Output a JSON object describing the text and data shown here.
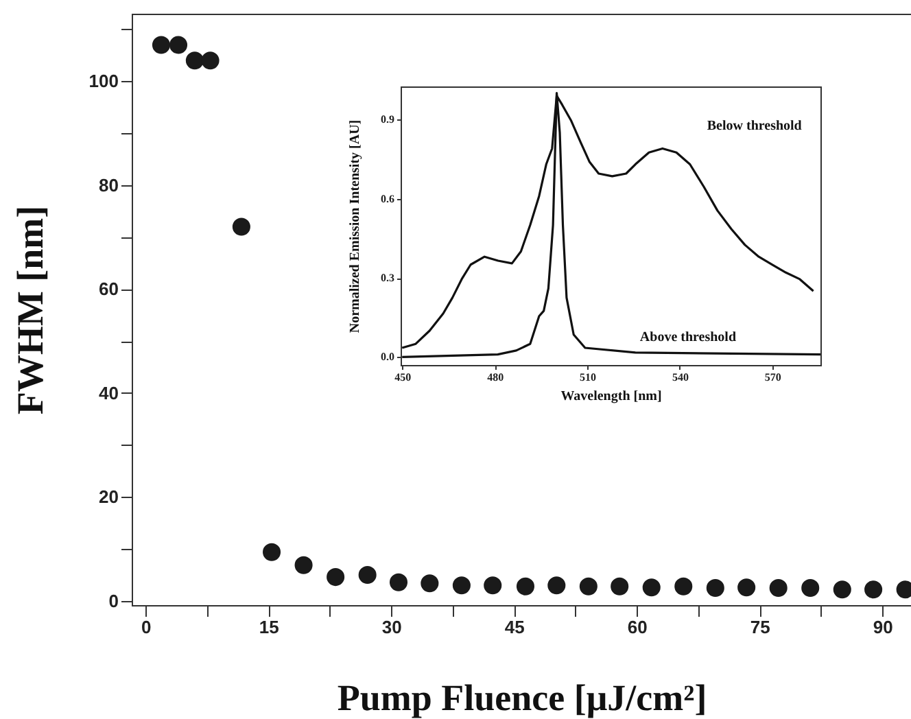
{
  "chart_data": [
    {
      "type": "scatter",
      "xlabel": "Pump Fluence [μJ/cm²]",
      "ylabel": "FWHM [nm]",
      "x": [
        1.9,
        4.0,
        6.0,
        7.9,
        11.7,
        15.4,
        19.3,
        23.2,
        27.1,
        30.9,
        34.7,
        38.6,
        42.4,
        46.4,
        50.2,
        54.1,
        57.9,
        61.8,
        65.7,
        69.6,
        73.4,
        77.3,
        81.2,
        85.1,
        88.9,
        92.8
      ],
      "series": [
        {
          "color": "#1a1a1a",
          "values": [
            107,
            107,
            104,
            104,
            72,
            9.4,
            6.9,
            4.6,
            5.0,
            3.6,
            3.4,
            3.0,
            3.0,
            2.8,
            3.0,
            2.8,
            2.8,
            2.6,
            2.8,
            2.5,
            2.6,
            2.5,
            2.5,
            2.2,
            2.2,
            2.2
          ]
        }
      ],
      "xlim": [
        -1.7,
        93.5
      ],
      "ylim": [
        -0.8,
        113
      ],
      "xticks": [
        0,
        {
          "value": 7.5,
          "label": null
        },
        15,
        {
          "value": 22.5,
          "label": null
        },
        30,
        {
          "value": 37.5,
          "label": null
        },
        45,
        {
          "value": 52.5,
          "label": null
        },
        60,
        {
          "value": 67.5,
          "label": null
        },
        75,
        {
          "value": 82.5,
          "label": null
        },
        90
      ],
      "yticks": [
        0,
        {
          "value": 10,
          "label": null
        },
        20,
        {
          "value": 30,
          "label": null
        },
        40,
        {
          "value": 50,
          "label": null
        },
        60,
        {
          "value": 70,
          "label": null
        },
        80,
        {
          "value": 90,
          "label": null
        },
        100,
        {
          "value": 110,
          "label": null
        }
      ],
      "marker": "circle",
      "grid": false
    },
    {
      "type": "line",
      "xlabel": "Wavelength [nm]",
      "ylabel": "Normalized Emission Intensity [AU]",
      "series": [
        {
          "name": "Below threshold",
          "color": "#111111",
          "x": [
            450,
            454.4,
            458.9,
            463.3,
            466.3,
            469.3,
            472.2,
            476.7,
            481.1,
            485.6,
            488.5,
            491.5,
            494.4,
            496.7,
            498.6,
            500.1,
            501.9,
            504.8,
            507.8,
            510.7,
            513.7,
            518.1,
            522.6,
            525.6,
            530,
            534.4,
            538.9,
            543.3,
            547.8,
            552.2,
            556.7,
            561.1,
            565.6,
            570,
            574.4,
            578.9,
            583.3
          ],
          "values": [
            0.035,
            0.05,
            0.1,
            0.165,
            0.225,
            0.295,
            0.35,
            0.38,
            0.365,
            0.355,
            0.4,
            0.5,
            0.61,
            0.73,
            0.79,
            0.99,
            0.955,
            0.895,
            0.815,
            0.74,
            0.695,
            0.685,
            0.695,
            0.73,
            0.775,
            0.79,
            0.775,
            0.73,
            0.645,
            0.555,
            0.485,
            0.425,
            0.38,
            0.35,
            0.32,
            0.295,
            0.25
          ]
        },
        {
          "name": "Above threshold",
          "color": "#111111",
          "x": [
            450,
            481,
            487,
            491.5,
            494.4,
            495.9,
            497.4,
            498.9,
            500.1,
            501.1,
            502.1,
            503.3,
            505.6,
            509.3,
            525.6,
            585.6
          ],
          "values": [
            0.0,
            0.01,
            0.025,
            0.05,
            0.155,
            0.175,
            0.26,
            0.5,
            1.0,
            0.85,
            0.5,
            0.225,
            0.085,
            0.035,
            0.017,
            0.01
          ]
        }
      ],
      "xlim": [
        449.5,
        585.6
      ],
      "ylim": [
        -0.03,
        1.025
      ],
      "xticks": [
        450,
        480,
        510,
        540,
        570
      ],
      "yticks": [
        {
          "value": 0,
          "label": "0.0"
        },
        0.3,
        0.6,
        0.9
      ],
      "marker": "none",
      "line_style": "solid",
      "grid": false
    }
  ]
}
